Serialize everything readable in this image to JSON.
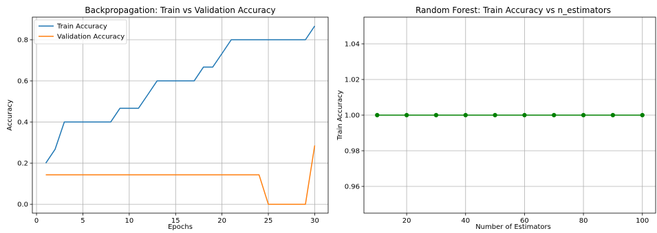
{
  "chart_data": [
    {
      "type": "line",
      "title": "Backpropagation: Train vs Validation Accuracy",
      "xlabel": "Epochs",
      "ylabel": "Accuracy",
      "xlim": [
        -0.45,
        31.45
      ],
      "ylim": [
        -0.043,
        0.91
      ],
      "xticks": [
        0,
        5,
        10,
        15,
        20,
        25,
        30
      ],
      "yticks": [
        0.0,
        0.2,
        0.4,
        0.6,
        0.8
      ],
      "ytick_labels": [
        "0.0",
        "0.2",
        "0.4",
        "0.6",
        "0.8"
      ],
      "grid": true,
      "legend": "upper-left",
      "x": [
        1,
        2,
        3,
        4,
        5,
        6,
        7,
        8,
        9,
        10,
        11,
        12,
        13,
        14,
        15,
        16,
        17,
        18,
        19,
        20,
        21,
        22,
        23,
        24,
        25,
        26,
        27,
        28,
        29,
        30
      ],
      "series": [
        {
          "name": "Train Accuracy",
          "color": "#1f77b4",
          "values": [
            0.2,
            0.267,
            0.4,
            0.4,
            0.4,
            0.4,
            0.4,
            0.4,
            0.467,
            0.467,
            0.467,
            0.533,
            0.6,
            0.6,
            0.6,
            0.6,
            0.6,
            0.667,
            0.667,
            0.733,
            0.8,
            0.8,
            0.8,
            0.8,
            0.8,
            0.8,
            0.8,
            0.8,
            0.8,
            0.867
          ]
        },
        {
          "name": "Validation Accuracy",
          "color": "#ff7f0e",
          "values": [
            0.143,
            0.143,
            0.143,
            0.143,
            0.143,
            0.143,
            0.143,
            0.143,
            0.143,
            0.143,
            0.143,
            0.143,
            0.143,
            0.143,
            0.143,
            0.143,
            0.143,
            0.143,
            0.143,
            0.143,
            0.143,
            0.143,
            0.143,
            0.143,
            0.0,
            0.0,
            0.0,
            0.0,
            0.0,
            0.286
          ]
        }
      ]
    },
    {
      "type": "line",
      "title": "Random Forest: Train Accuracy vs n_estimators",
      "xlabel": "Number of Estimators",
      "ylabel": "Train Accuracy",
      "xlim": [
        5.5,
        104.5
      ],
      "ylim": [
        0.945,
        1.055
      ],
      "xticks": [
        20,
        40,
        60,
        80,
        100
      ],
      "yticks": [
        0.96,
        0.98,
        1.0,
        1.02,
        1.04
      ],
      "ytick_labels": [
        "0.96",
        "0.98",
        "1.00",
        "1.02",
        "1.04"
      ],
      "grid": true,
      "marker": "circle",
      "x": [
        10,
        20,
        30,
        40,
        50,
        60,
        70,
        80,
        90,
        100
      ],
      "series": [
        {
          "color": "#008000",
          "values": [
            1.0,
            1.0,
            1.0,
            1.0,
            1.0,
            1.0,
            1.0,
            1.0,
            1.0,
            1.0
          ]
        }
      ]
    }
  ]
}
